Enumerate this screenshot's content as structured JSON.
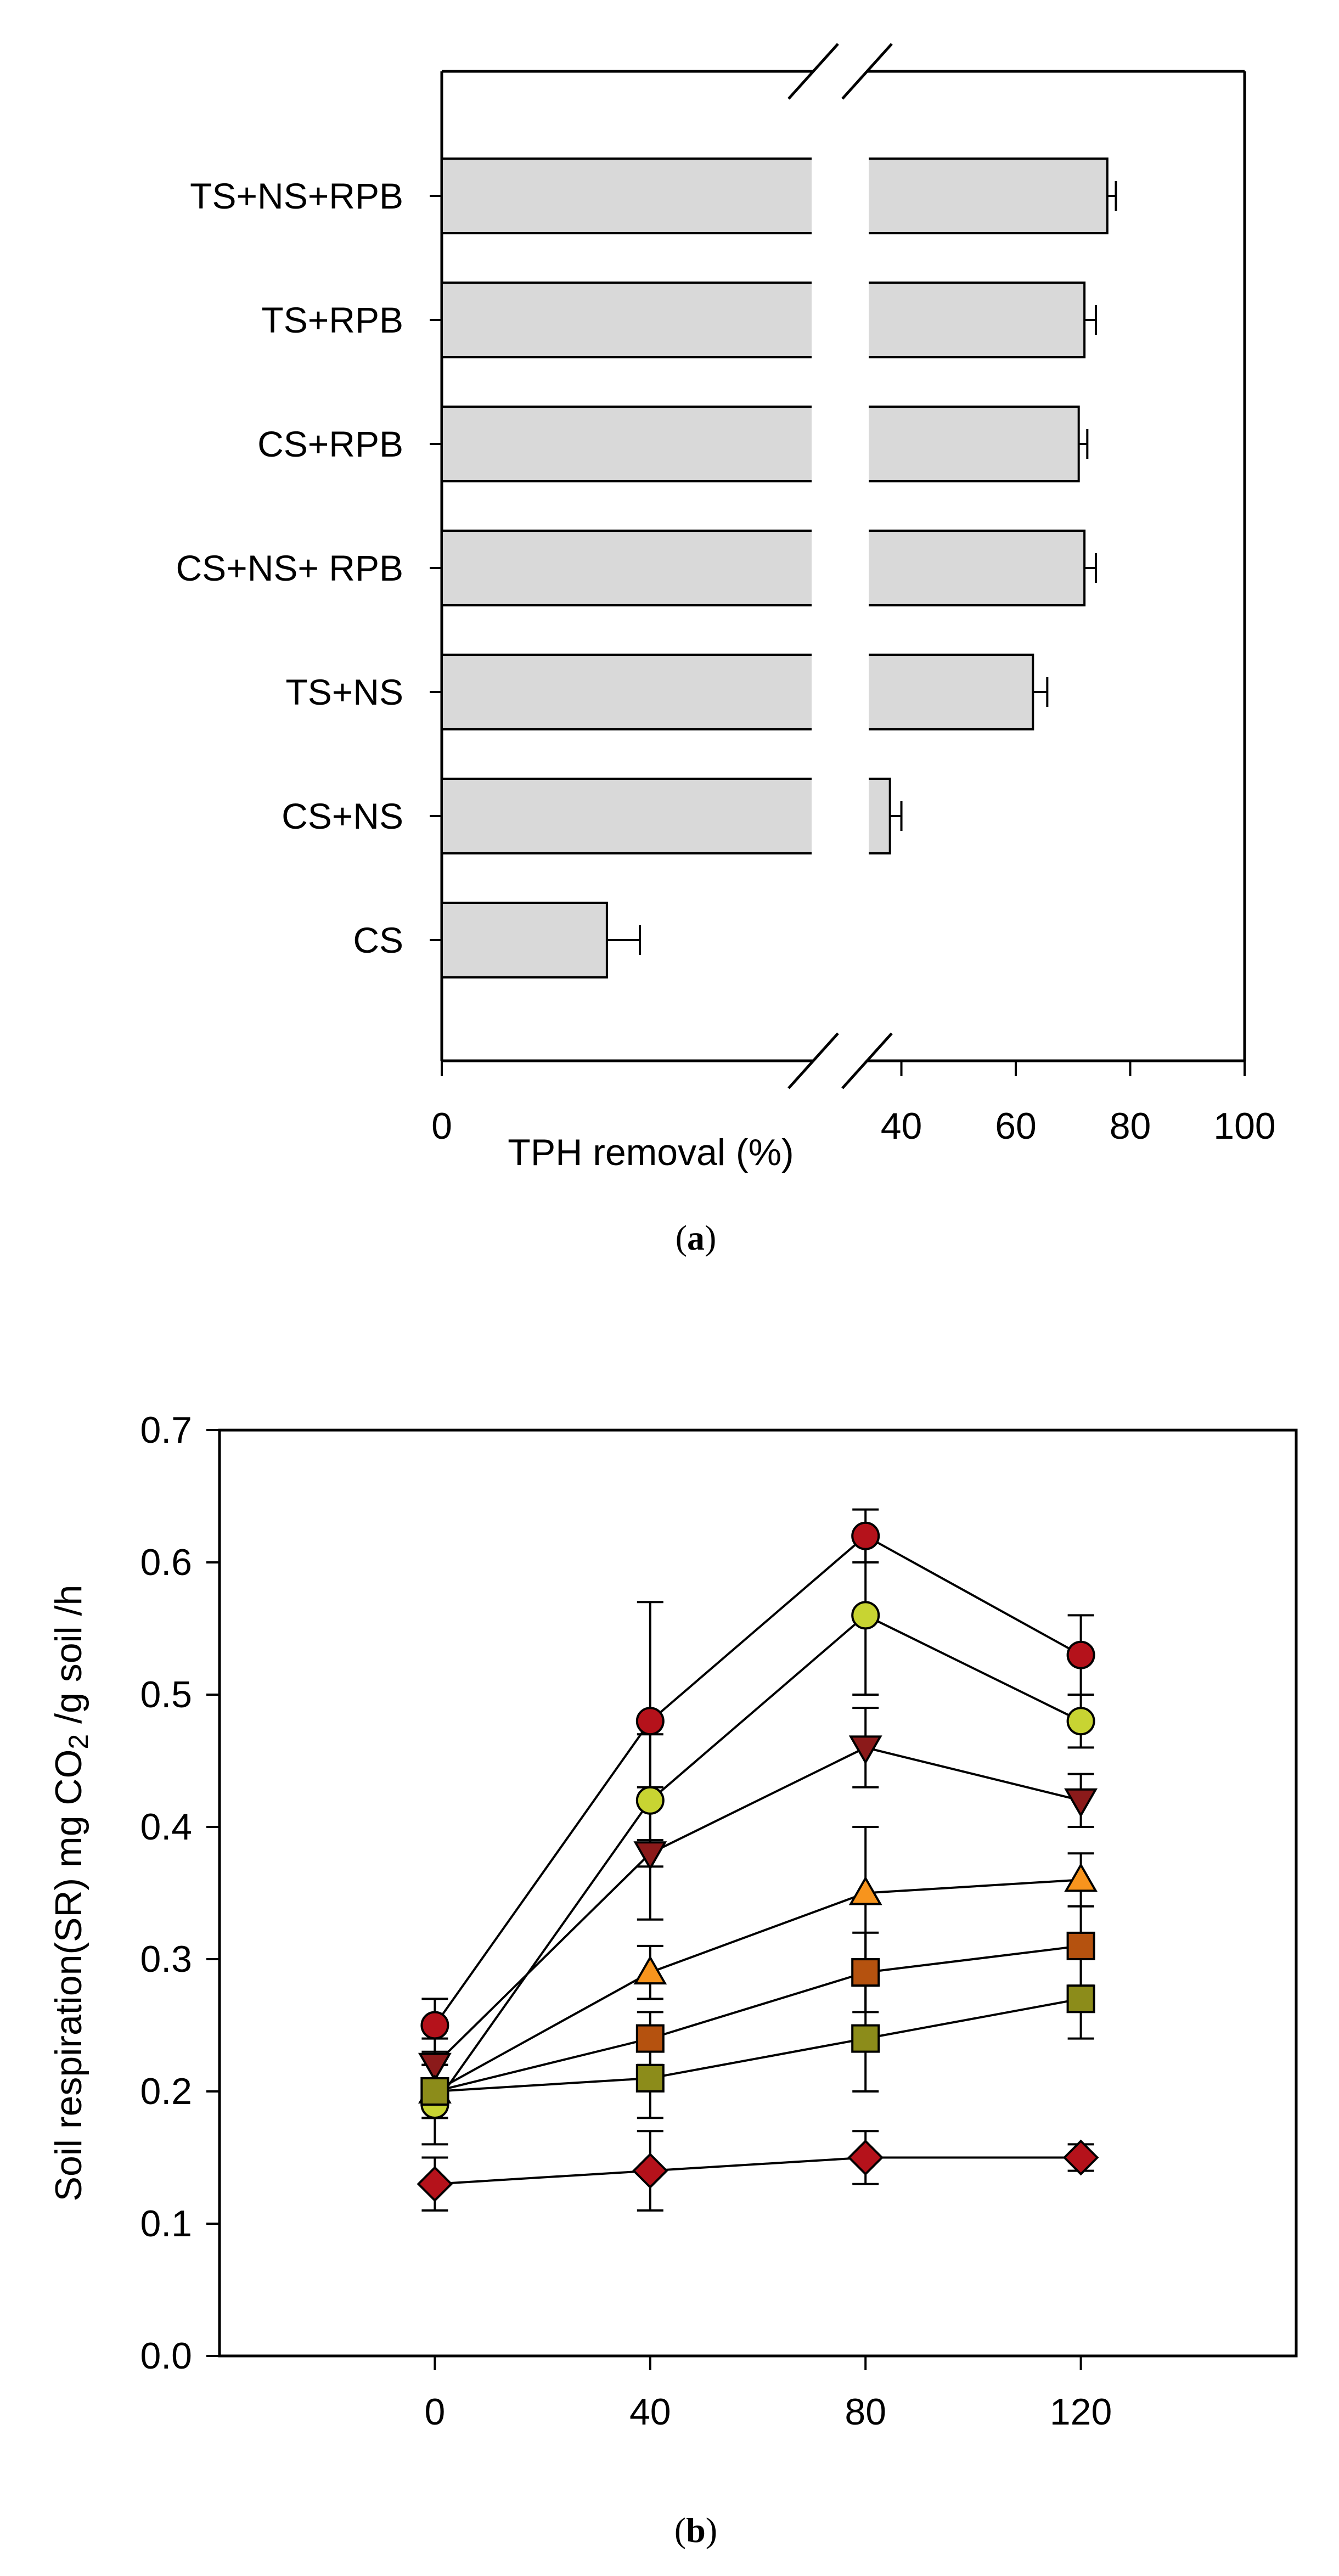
{
  "chart_data": [
    {
      "type": "bar",
      "orientation": "horizontal",
      "panel_label": "a",
      "title": "",
      "xlabel": "TPH removal (%)",
      "ylabel": "",
      "axis_break": [
        18,
        34
      ],
      "xlim": [
        0,
        100
      ],
      "x_tick_labels": [
        "0",
        "40",
        "60",
        "80",
        "100"
      ],
      "categories": [
        "TS+NS+RPB",
        "TS+RPB",
        "CS+RPB",
        "CS+NS+ RPB",
        "TS+NS",
        "CS+NS",
        "CS"
      ],
      "values": [
        76,
        72,
        71,
        72,
        63,
        38,
        8
      ],
      "errors": [
        1.5,
        2,
        1.5,
        2,
        2.5,
        2,
        1.6
      ],
      "bar_color": "#d9d9d9"
    },
    {
      "type": "scatter",
      "panel_label": "b",
      "title": "",
      "xlabel": "",
      "ylabel_parts": [
        "Soil respiration(SR) mg CO",
        "2",
        " /g soil /h"
      ],
      "xlim": [
        -40,
        160
      ],
      "ylim": [
        0,
        0.7
      ],
      "x_tick_labels": [
        "0",
        "40",
        "80",
        "120"
      ],
      "y_tick_labels": [
        "0.0",
        "0.1",
        "0.2",
        "0.3",
        "0.4",
        "0.5",
        "0.6",
        "0.7"
      ],
      "x": [
        0,
        40,
        80,
        120
      ],
      "series": [
        {
          "marker": "circle",
          "color": "#b5121b",
          "values": [
            0.25,
            0.48,
            0.62,
            0.53
          ],
          "errors": [
            0.02,
            0.09,
            0.02,
            0.03
          ]
        },
        {
          "marker": "circle",
          "color": "#c8d432",
          "values": [
            0.19,
            0.42,
            0.56,
            0.48
          ],
          "errors": [
            0.03,
            0.05,
            0.06,
            0.02
          ]
        },
        {
          "marker": "triangle-down",
          "color": "#8b1a1a",
          "values": [
            0.22,
            0.38,
            0.46,
            0.42
          ],
          "errors": [
            0.02,
            0.05,
            0.03,
            0.02
          ]
        },
        {
          "marker": "triangle-up",
          "color": "#f7941d",
          "values": [
            0.2,
            0.29,
            0.35,
            0.36
          ],
          "errors": [
            0.02,
            0.02,
            0.05,
            0.02
          ]
        },
        {
          "marker": "square",
          "color": "#b5520f",
          "values": [
            0.2,
            0.24,
            0.29,
            0.31
          ],
          "errors": [
            0.02,
            0.02,
            0.03,
            0.03
          ]
        },
        {
          "marker": "square",
          "color": "#8c8c1a",
          "values": [
            0.2,
            0.21,
            0.24,
            0.27
          ],
          "errors": [
            0.02,
            0.03,
            0.04,
            0.03
          ]
        },
        {
          "marker": "diamond",
          "color": "#b5121b",
          "values": [
            0.13,
            0.14,
            0.15,
            0.15
          ],
          "errors": [
            0.02,
            0.03,
            0.02,
            0.01
          ]
        }
      ]
    }
  ]
}
